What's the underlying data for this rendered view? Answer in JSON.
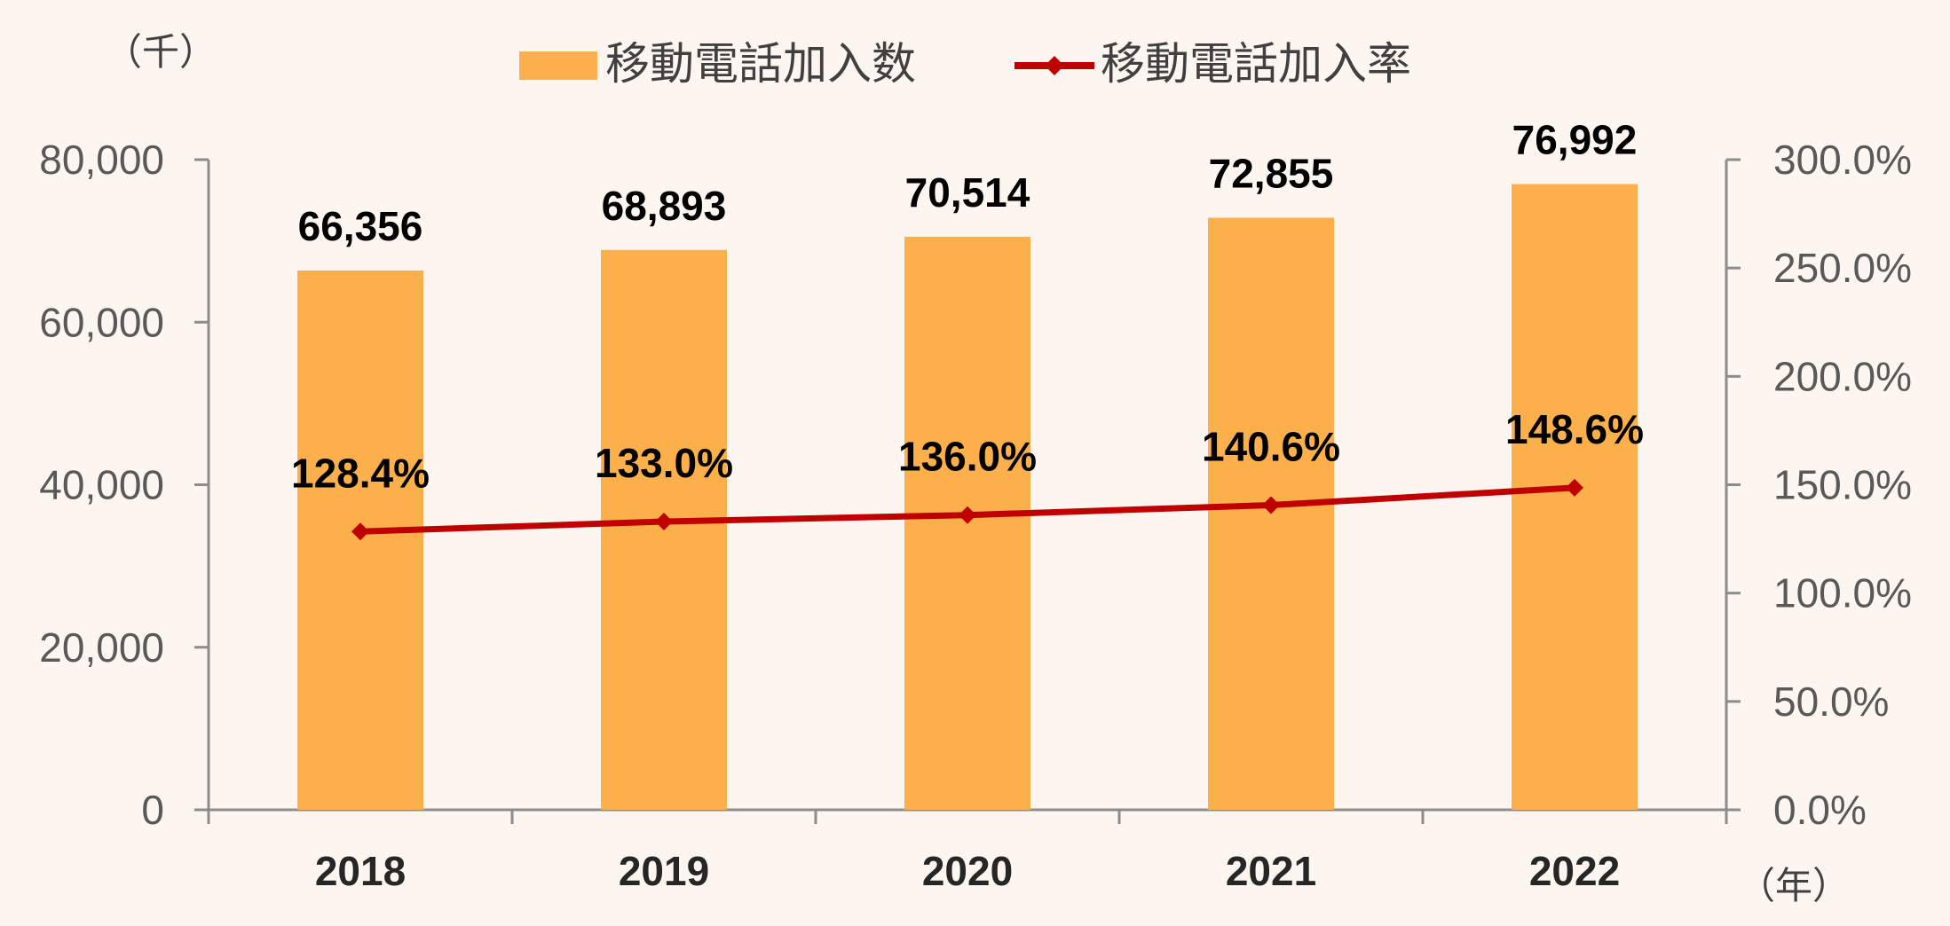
{
  "chart_data": {
    "type": "bar",
    "categories": [
      "2018",
      "2019",
      "2020",
      "2021",
      "2022"
    ],
    "series": [
      {
        "name": "移動電話加入数",
        "type": "bar",
        "axis": "left",
        "color": "#fbb04b",
        "values": [
          66356,
          68893,
          70514,
          72855,
          76992
        ],
        "labels": [
          "66,356",
          "68,893",
          "70,514",
          "72,855",
          "76,992"
        ]
      },
      {
        "name": "移動電話加入率",
        "type": "line",
        "axis": "right",
        "color": "#c00000",
        "values": [
          128.4,
          133.0,
          136.0,
          140.6,
          148.6
        ],
        "labels": [
          "128.4%",
          "133.0%",
          "136.0%",
          "140.6%",
          "148.6%"
        ]
      }
    ],
    "left_axis": {
      "unit": "（千）",
      "ylim": [
        0,
        80000
      ],
      "ticks": [
        "0",
        "20,000",
        "40,000",
        "60,000",
        "80,000"
      ]
    },
    "right_axis": {
      "ylim": [
        0,
        300
      ],
      "ticks": [
        "0.0%",
        "50.0%",
        "100.0%",
        "150.0%",
        "200.0%",
        "250.0%",
        "300.0%"
      ]
    },
    "x_axis": {
      "unit": "（年）"
    },
    "legend_position": "top",
    "grid": false
  }
}
